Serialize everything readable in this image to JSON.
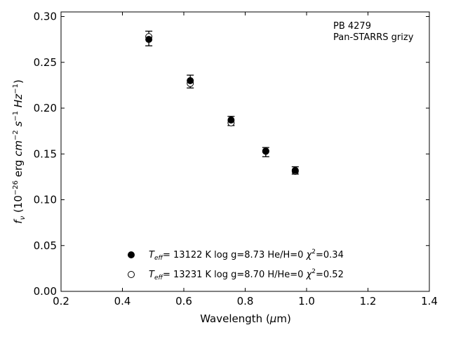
{
  "chart_data": {
    "type": "scatter",
    "title": "",
    "xlabel": "Wavelength (μm)",
    "ylabel": "fν (10⁻²⁶ erg cm⁻² s⁻¹ Hz⁻¹)",
    "xlim": [
      0.2,
      1.4
    ],
    "ylim": [
      0.0,
      0.305
    ],
    "xticks": [
      "0.2",
      "0.4",
      "0.6",
      "0.8",
      "1.0",
      "1.2",
      "1.4"
    ],
    "yticks": [
      "0.00",
      "0.05",
      "0.10",
      "0.15",
      "0.20",
      "0.25",
      "0.30"
    ],
    "grid": false,
    "annotations": [
      "PB 4279",
      "Pan-STARRS grizy"
    ],
    "observed": {
      "x": [
        0.486,
        0.621,
        0.754,
        0.867,
        0.963
      ],
      "y": [
        0.276,
        0.229,
        0.186,
        0.152,
        0.132
      ],
      "yerr": [
        0.008,
        0.007,
        0.005,
        0.005,
        0.004
      ]
    },
    "series": [
      {
        "marker": "filled-circle",
        "label": "Teff= 13122 K  log g=8.73  He/H=0  χ²=0.34",
        "x": [
          0.486,
          0.621,
          0.754,
          0.867,
          0.963
        ],
        "y": [
          0.275,
          0.23,
          0.187,
          0.153,
          0.132
        ]
      },
      {
        "marker": "open-circle",
        "label": "Teff= 13231 K  log g=8.70  H/He=0  χ²=0.52",
        "x": [
          0.486,
          0.621,
          0.754,
          0.867,
          0.963
        ],
        "y": [
          0.278,
          0.227,
          0.184,
          0.153,
          0.131
        ]
      }
    ],
    "legend_position": "lower-center"
  }
}
